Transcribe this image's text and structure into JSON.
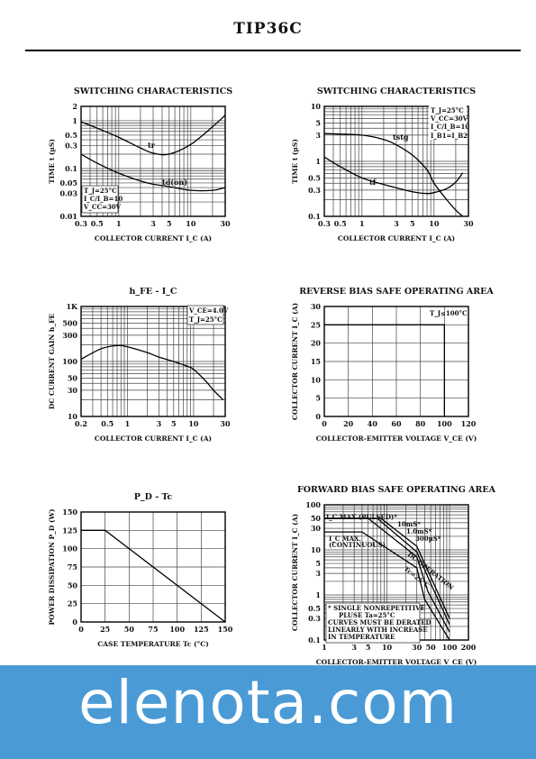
{
  "header": {
    "part_number": "TIP36C"
  },
  "watermark": {
    "text": "elenota.com",
    "color": "#4a9ad6"
  },
  "chart_data": [
    {
      "type": "line",
      "id": "sw1",
      "title": "SWITCHING CHARACTERISTICS",
      "xlabel": "COLLECTOR CURRENT I_C (A)",
      "ylabel": "TIME t (µS)",
      "xscale": "log",
      "yscale": "log",
      "xlim": [
        0.3,
        30
      ],
      "ylim": [
        0.01,
        2
      ],
      "xticks": [
        0.3,
        0.5,
        1,
        3,
        5,
        10,
        30
      ],
      "xticklabels": [
        "0.3",
        "0.5",
        "1",
        "3",
        "5",
        "10",
        "30"
      ],
      "yticks": [
        0.01,
        0.03,
        0.05,
        0.1,
        0.3,
        0.5,
        1,
        2
      ],
      "yticklabels": [
        "0.01",
        "0.03",
        "0.05",
        "0.1",
        "0.3",
        "0.5",
        "1",
        "2"
      ],
      "annotations": [
        "T_J=25°C",
        "I_C/I_B=10",
        "V_CC=30V"
      ],
      "series": [
        {
          "name": "tr",
          "x": [
            0.3,
            0.5,
            1,
            2,
            3,
            5,
            10,
            20,
            30
          ],
          "y": [
            0.95,
            0.7,
            0.45,
            0.27,
            0.21,
            0.2,
            0.32,
            0.75,
            1.3
          ]
        },
        {
          "name": "td(on)",
          "x": [
            0.3,
            0.5,
            1,
            2,
            3,
            5,
            10,
            20,
            30
          ],
          "y": [
            0.2,
            0.13,
            0.08,
            0.055,
            0.047,
            0.042,
            0.035,
            0.035,
            0.04
          ]
        }
      ]
    },
    {
      "type": "line",
      "id": "sw2",
      "title": "SWITCHING CHARACTERISTICS",
      "xlabel": "COLLECTOR CURRENT I_C (A)",
      "ylabel": "TIME t (µS)",
      "xscale": "log",
      "yscale": "log",
      "xlim": [
        0.3,
        30
      ],
      "ylim": [
        0.1,
        10
      ],
      "xticks": [
        0.3,
        0.5,
        1,
        3,
        5,
        10,
        30
      ],
      "xticklabels": [
        "0.3",
        "0.5",
        "1",
        "3",
        "5",
        "10",
        "30"
      ],
      "yticks": [
        0.1,
        0.3,
        0.5,
        1,
        3,
        5,
        10
      ],
      "yticklabels": [
        "0.1",
        "0.3",
        "0.5",
        "1",
        "3",
        "5",
        "10"
      ],
      "annotations": [
        "T_J=25°C",
        "V_CC=30V",
        "I_C/I_B=10",
        "I_B1=I_B2"
      ],
      "series": [
        {
          "name": "tstg",
          "x": [
            0.3,
            1,
            2,
            3,
            5,
            8,
            10,
            15,
            20,
            25
          ],
          "y": [
            3.2,
            3.0,
            2.5,
            2.0,
            1.3,
            0.7,
            0.4,
            0.2,
            0.13,
            0.1
          ]
        },
        {
          "name": "tf",
          "x": [
            0.3,
            0.5,
            1,
            2,
            3,
            5,
            8,
            10,
            15,
            20,
            25
          ],
          "y": [
            1.2,
            0.8,
            0.5,
            0.38,
            0.33,
            0.28,
            0.26,
            0.27,
            0.32,
            0.42,
            0.62
          ]
        }
      ]
    },
    {
      "type": "line",
      "id": "hfe",
      "title": "h_FE - I_C",
      "xlabel": "COLLECTOR CURRENT I_C (A)",
      "ylabel": "DC CURRENT GAIN h_FE",
      "xscale": "log",
      "yscale": "log",
      "xlim": [
        0.2,
        30
      ],
      "ylim": [
        10,
        1000
      ],
      "xticks": [
        0.2,
        0.5,
        1,
        3,
        5,
        10,
        30
      ],
      "xticklabels": [
        "0.2",
        "0.5",
        "1",
        "3",
        "5",
        "10",
        "30"
      ],
      "yticks": [
        10,
        30,
        50,
        100,
        300,
        500,
        1000
      ],
      "yticklabels": [
        "10",
        "30",
        "50",
        "100",
        "300",
        "500",
        "1K"
      ],
      "annotations": [
        "V_CE=4.0V",
        "T_J=25°C"
      ],
      "series": [
        {
          "name": "",
          "x": [
            0.2,
            0.4,
            0.7,
            1,
            2,
            3,
            5,
            8,
            10,
            15,
            20,
            28
          ],
          "y": [
            110,
            170,
            195,
            185,
            145,
            120,
            100,
            82,
            72,
            45,
            30,
            20
          ]
        }
      ]
    },
    {
      "type": "line",
      "id": "rbsoa",
      "title": "REVERSE BIAS SAFE OPERATING AREA",
      "xlabel": "COLLECTOR-EMITTER VOLTAGE V_CE (V)",
      "ylabel": "COLLECTOR CURRENT I_C (A)",
      "xscale": "linear",
      "yscale": "linear",
      "xlim": [
        0,
        120
      ],
      "ylim": [
        0,
        30
      ],
      "xticks": [
        0,
        20,
        40,
        60,
        80,
        100,
        120
      ],
      "xticklabels": [
        "0",
        "20",
        "40",
        "60",
        "80",
        "100",
        "120"
      ],
      "yticks": [
        0,
        5,
        10,
        15,
        20,
        25,
        30
      ],
      "yticklabels": [
        "0",
        "5",
        "10",
        "15",
        "20",
        "25",
        "30"
      ],
      "annotations": [
        "T_J≤100°C"
      ],
      "series": [
        {
          "name": "",
          "x": [
            0,
            100,
            100
          ],
          "y": [
            25,
            25,
            0
          ]
        }
      ]
    },
    {
      "type": "line",
      "id": "pd",
      "title": "P_D - Tc",
      "xlabel": "CASE TEMPERATURE Tc (°C)",
      "ylabel": "POWER DISSIPATION P_D (W)",
      "xscale": "linear",
      "yscale": "linear",
      "xlim": [
        0,
        150
      ],
      "ylim": [
        0,
        150
      ],
      "xticks": [
        0,
        25,
        50,
        75,
        100,
        125,
        150
      ],
      "xticklabels": [
        "0",
        "25",
        "50",
        "75",
        "100",
        "125",
        "150"
      ],
      "yticks": [
        0,
        25,
        50,
        75,
        100,
        125,
        150
      ],
      "yticklabels": [
        "0",
        "25",
        "50",
        "75",
        "100",
        "125",
        "150"
      ],
      "annotations": [],
      "series": [
        {
          "name": "",
          "x": [
            0,
            25,
            150
          ],
          "y": [
            125,
            125,
            0
          ]
        }
      ]
    },
    {
      "type": "line",
      "id": "fbsoa",
      "title": "FORWARD BIAS SAFE OPERATING AREA",
      "xlabel": "COLLECTOR-EMITTER VOLTAGE V_CE (V)",
      "ylabel": "COLLECTOR CURRENT I_C (A)",
      "xscale": "log",
      "yscale": "log",
      "xlim": [
        1,
        200
      ],
      "ylim": [
        0.1,
        100
      ],
      "xticks": [
        1,
        3,
        5,
        10,
        30,
        50,
        100,
        200
      ],
      "xticklabels": [
        "1",
        "3",
        "5",
        "10",
        "30",
        "50",
        "100",
        "200"
      ],
      "yticks": [
        0.1,
        0.3,
        0.5,
        1,
        3,
        5,
        10,
        30,
        50,
        100
      ],
      "yticklabels": [
        "0.1",
        "0.3",
        "0.5",
        "1",
        "3",
        "5",
        "10",
        "30",
        "50",
        "100"
      ],
      "annotations": [
        "I_C MAX.(PULSED)*",
        "I_C MAX.",
        "(CONTINUOUS)",
        "10mS*",
        "1.0mS*",
        "300µS*",
        "DC OPERATION",
        "Tc=25°C",
        "* SINGLE NONREPETITIVE",
        "PLUSE Ta=25°C",
        "CURVES MUST BE DERATED",
        "LINEARLY WITH INCREASE",
        "IN TEMPERATURE"
      ],
      "series": [
        {
          "name": "300µS",
          "x": [
            1,
            8,
            30,
            50,
            100
          ],
          "y": [
            50,
            50,
            12,
            2.5,
            0.3
          ]
        },
        {
          "name": "1.0mS",
          "x": [
            1,
            7,
            30,
            50,
            100
          ],
          "y": [
            50,
            50,
            9,
            1.8,
            0.22
          ]
        },
        {
          "name": "10mS",
          "x": [
            1,
            5,
            30,
            45,
            100
          ],
          "y": [
            50,
            50,
            7,
            1.2,
            0.15
          ]
        },
        {
          "name": "DC",
          "x": [
            1,
            4,
            30,
            40,
            100
          ],
          "y": [
            25,
            25,
            4,
            0.8,
            0.1
          ]
        }
      ]
    }
  ]
}
